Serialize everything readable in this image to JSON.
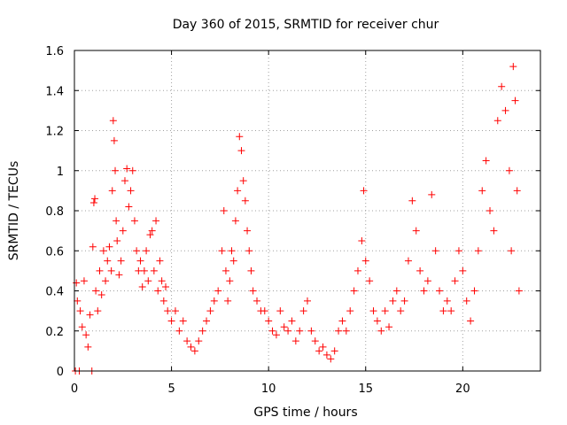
{
  "chart_data": {
    "type": "scatter",
    "title": "Day 360 of 2015, SRMTID for receiver chur",
    "xlabel": "GPS time / hours",
    "ylabel": "SRMTID / TECUs",
    "xlim": [
      0,
      24
    ],
    "ylim": [
      0,
      1.6
    ],
    "x_ticks": [
      0,
      5,
      10,
      15,
      20
    ],
    "x_tick_labels": [
      "0",
      "5",
      "10",
      "15",
      "20"
    ],
    "y_ticks": [
      0,
      0.2,
      0.4,
      0.6,
      0.8,
      1.0,
      1.2,
      1.4,
      1.6
    ],
    "y_tick_labels": [
      "0",
      "0.2",
      "0.4",
      "0.6",
      "0.8",
      "1",
      "1.2",
      "1.4",
      "1.6"
    ],
    "grid": true,
    "marker": "+",
    "color": "#ff0000",
    "series": [
      {
        "name": "SRMTID",
        "points": [
          [
            0.05,
            0.0
          ],
          [
            0.1,
            0.44
          ],
          [
            0.15,
            0.35
          ],
          [
            0.25,
            0.0
          ],
          [
            0.3,
            0.3
          ],
          [
            0.4,
            0.22
          ],
          [
            0.5,
            0.45
          ],
          [
            0.6,
            0.18
          ],
          [
            0.7,
            0.12
          ],
          [
            0.8,
            0.28
          ],
          [
            0.9,
            0.0
          ],
          [
            0.95,
            0.62
          ],
          [
            1.0,
            0.84
          ],
          [
            1.05,
            0.86
          ],
          [
            1.1,
            0.4
          ],
          [
            1.2,
            0.3
          ],
          [
            1.3,
            0.5
          ],
          [
            1.4,
            0.38
          ],
          [
            1.5,
            0.6
          ],
          [
            1.6,
            0.45
          ],
          [
            1.7,
            0.55
          ],
          [
            1.8,
            0.62
          ],
          [
            1.9,
            0.5
          ],
          [
            1.95,
            0.9
          ],
          [
            2.0,
            1.25
          ],
          [
            2.05,
            1.15
          ],
          [
            2.1,
            1.0
          ],
          [
            2.15,
            0.75
          ],
          [
            2.2,
            0.65
          ],
          [
            2.3,
            0.48
          ],
          [
            2.4,
            0.55
          ],
          [
            2.5,
            0.7
          ],
          [
            2.6,
            0.95
          ],
          [
            2.7,
            1.01
          ],
          [
            2.8,
            0.82
          ],
          [
            2.9,
            0.9
          ],
          [
            3.0,
            1.0
          ],
          [
            3.1,
            0.75
          ],
          [
            3.2,
            0.6
          ],
          [
            3.3,
            0.5
          ],
          [
            3.4,
            0.55
          ],
          [
            3.5,
            0.42
          ],
          [
            3.6,
            0.5
          ],
          [
            3.7,
            0.6
          ],
          [
            3.8,
            0.45
          ],
          [
            3.9,
            0.68
          ],
          [
            4.0,
            0.7
          ],
          [
            4.1,
            0.5
          ],
          [
            4.2,
            0.75
          ],
          [
            4.3,
            0.4
          ],
          [
            4.4,
            0.55
          ],
          [
            4.5,
            0.45
          ],
          [
            4.6,
            0.35
          ],
          [
            4.7,
            0.42
          ],
          [
            4.8,
            0.3
          ],
          [
            5.0,
            0.25
          ],
          [
            5.2,
            0.3
          ],
          [
            5.4,
            0.2
          ],
          [
            5.6,
            0.25
          ],
          [
            5.8,
            0.15
          ],
          [
            6.0,
            0.12
          ],
          [
            6.2,
            0.1
          ],
          [
            6.4,
            0.15
          ],
          [
            6.6,
            0.2
          ],
          [
            6.8,
            0.25
          ],
          [
            7.0,
            0.3
          ],
          [
            7.2,
            0.35
          ],
          [
            7.4,
            0.4
          ],
          [
            7.6,
            0.6
          ],
          [
            7.7,
            0.8
          ],
          [
            7.8,
            0.5
          ],
          [
            7.9,
            0.35
          ],
          [
            8.0,
            0.45
          ],
          [
            8.1,
            0.6
          ],
          [
            8.2,
            0.55
          ],
          [
            8.3,
            0.75
          ],
          [
            8.4,
            0.9
          ],
          [
            8.5,
            1.17
          ],
          [
            8.6,
            1.1
          ],
          [
            8.7,
            0.95
          ],
          [
            8.8,
            0.85
          ],
          [
            8.9,
            0.7
          ],
          [
            9.0,
            0.6
          ],
          [
            9.1,
            0.5
          ],
          [
            9.2,
            0.4
          ],
          [
            9.4,
            0.35
          ],
          [
            9.6,
            0.3
          ],
          [
            9.8,
            0.3
          ],
          [
            10.0,
            0.25
          ],
          [
            10.2,
            0.2
          ],
          [
            10.4,
            0.18
          ],
          [
            10.6,
            0.3
          ],
          [
            10.8,
            0.22
          ],
          [
            11.0,
            0.2
          ],
          [
            11.2,
            0.25
          ],
          [
            11.4,
            0.15
          ],
          [
            11.6,
            0.2
          ],
          [
            11.8,
            0.3
          ],
          [
            12.0,
            0.35
          ],
          [
            12.2,
            0.2
          ],
          [
            12.4,
            0.15
          ],
          [
            12.6,
            0.1
          ],
          [
            12.8,
            0.12
          ],
          [
            13.0,
            0.08
          ],
          [
            13.2,
            0.06
          ],
          [
            13.4,
            0.1
          ],
          [
            13.6,
            0.2
          ],
          [
            13.8,
            0.25
          ],
          [
            14.0,
            0.2
          ],
          [
            14.2,
            0.3
          ],
          [
            14.4,
            0.4
          ],
          [
            14.6,
            0.5
          ],
          [
            14.8,
            0.65
          ],
          [
            14.9,
            0.9
          ],
          [
            15.0,
            0.55
          ],
          [
            15.2,
            0.45
          ],
          [
            15.4,
            0.3
          ],
          [
            15.6,
            0.25
          ],
          [
            15.8,
            0.2
          ],
          [
            16.0,
            0.3
          ],
          [
            16.2,
            0.22
          ],
          [
            16.4,
            0.35
          ],
          [
            16.6,
            0.4
          ],
          [
            16.8,
            0.3
          ],
          [
            17.0,
            0.35
          ],
          [
            17.2,
            0.55
          ],
          [
            17.4,
            0.85
          ],
          [
            17.6,
            0.7
          ],
          [
            17.8,
            0.5
          ],
          [
            18.0,
            0.4
          ],
          [
            18.2,
            0.45
          ],
          [
            18.4,
            0.88
          ],
          [
            18.6,
            0.6
          ],
          [
            18.8,
            0.4
          ],
          [
            19.0,
            0.3
          ],
          [
            19.2,
            0.35
          ],
          [
            19.4,
            0.3
          ],
          [
            19.6,
            0.45
          ],
          [
            19.8,
            0.6
          ],
          [
            20.0,
            0.5
          ],
          [
            20.2,
            0.35
          ],
          [
            20.4,
            0.25
          ],
          [
            20.6,
            0.4
          ],
          [
            20.8,
            0.6
          ],
          [
            21.0,
            0.9
          ],
          [
            21.2,
            1.05
          ],
          [
            21.4,
            0.8
          ],
          [
            21.6,
            0.7
          ],
          [
            21.8,
            1.25
          ],
          [
            22.0,
            1.42
          ],
          [
            22.2,
            1.3
          ],
          [
            22.4,
            1.0
          ],
          [
            22.5,
            0.6
          ],
          [
            22.6,
            1.52
          ],
          [
            22.7,
            1.35
          ],
          [
            22.8,
            0.9
          ],
          [
            22.9,
            0.4
          ]
        ]
      }
    ]
  }
}
